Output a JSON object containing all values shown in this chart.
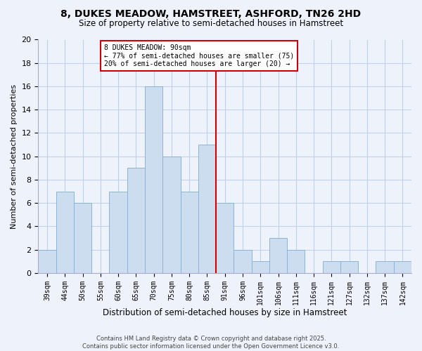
{
  "title": "8, DUKES MEADOW, HAMSTREET, ASHFORD, TN26 2HD",
  "subtitle": "Size of property relative to semi-detached houses in Hamstreet",
  "xlabel": "Distribution of semi-detached houses by size in Hamstreet",
  "ylabel": "Number of semi-detached properties",
  "bin_labels": [
    "39sqm",
    "44sqm",
    "50sqm",
    "55sqm",
    "60sqm",
    "65sqm",
    "70sqm",
    "75sqm",
    "80sqm",
    "85sqm",
    "91sqm",
    "96sqm",
    "101sqm",
    "106sqm",
    "111sqm",
    "116sqm",
    "121sqm",
    "127sqm",
    "132sqm",
    "137sqm",
    "142sqm"
  ],
  "bar_values": [
    2,
    7,
    6,
    0,
    7,
    9,
    16,
    10,
    7,
    11,
    6,
    2,
    1,
    3,
    2,
    0,
    1,
    1,
    0,
    1,
    1
  ],
  "bar_color": "#ccddf0",
  "bar_edge_color": "#8ab4d8",
  "vline_x": 9.5,
  "vline_color": "#cc0000",
  "annotation_title": "8 DUKES MEADOW: 90sqm",
  "annotation_line1": "← 77% of semi-detached houses are smaller (75)",
  "annotation_line2": "20% of semi-detached houses are larger (20) →",
  "annotation_box_color": "#ffffff",
  "annotation_box_edge": "#cc0000",
  "ylim": [
    0,
    20
  ],
  "yticks": [
    0,
    2,
    4,
    6,
    8,
    10,
    12,
    14,
    16,
    18,
    20
  ],
  "footer_line1": "Contains HM Land Registry data © Crown copyright and database right 2025.",
  "footer_line2": "Contains public sector information licensed under the Open Government Licence v3.0.",
  "background_color": "#eef3fb",
  "grid_color": "#c0d0e8"
}
